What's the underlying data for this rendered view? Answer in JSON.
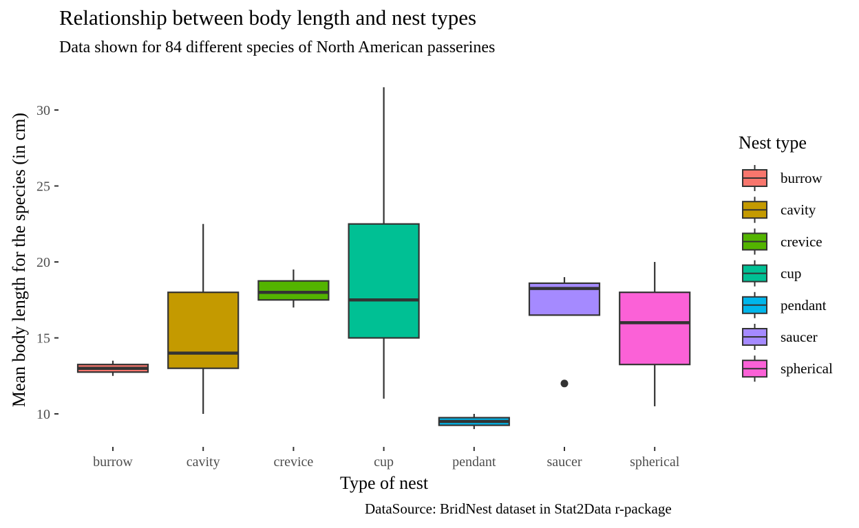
{
  "chart_data": {
    "type": "box",
    "title": "Relationship between body length and nest types",
    "subtitle": "Data shown for 84 different species of North American passerines",
    "caption": "DataSource: BridNest dataset in Stat2Data r-package",
    "xlabel": "Type of nest",
    "ylabel": "Mean body length for the species (in cm)",
    "ylim": [
      8.2,
      31.8
    ],
    "yticks": [
      10,
      15,
      20,
      25,
      30
    ],
    "grid": false,
    "legend": {
      "title": "Nest type",
      "position": "right"
    },
    "categories": [
      "burrow",
      "cavity",
      "crevice",
      "cup",
      "pendant",
      "saucer",
      "spherical"
    ],
    "boxes": [
      {
        "category": "burrow",
        "color": "#F8766D",
        "min": 12.5,
        "q1": 12.75,
        "median": 13.0,
        "q3": 13.25,
        "max": 13.5,
        "outliers": []
      },
      {
        "category": "cavity",
        "color": "#C49A00",
        "min": 10.0,
        "q1": 13.0,
        "median": 14.0,
        "q3": 18.0,
        "max": 22.5,
        "outliers": []
      },
      {
        "category": "crevice",
        "color": "#53B400",
        "min": 17.0,
        "q1": 17.5,
        "median": 18.0,
        "q3": 18.75,
        "max": 19.5,
        "outliers": []
      },
      {
        "category": "cup",
        "color": "#00C094",
        "min": 11.0,
        "q1": 15.0,
        "median": 17.5,
        "q3": 22.5,
        "max": 31.5,
        "outliers": []
      },
      {
        "category": "pendant",
        "color": "#00B6EB",
        "min": 9.0,
        "q1": 9.25,
        "median": 9.5,
        "q3": 9.75,
        "max": 10.0,
        "outliers": []
      },
      {
        "category": "saucer",
        "color": "#A58AFF",
        "min": 16.5,
        "q1": 16.5,
        "median": 18.25,
        "q3": 18.6,
        "max": 19.0,
        "outliers": [
          12.0
        ]
      },
      {
        "category": "spherical",
        "color": "#FB61D7",
        "min": 10.5,
        "q1": 13.25,
        "median": 16.0,
        "q3": 18.0,
        "max": 20.0,
        "outliers": []
      }
    ]
  }
}
